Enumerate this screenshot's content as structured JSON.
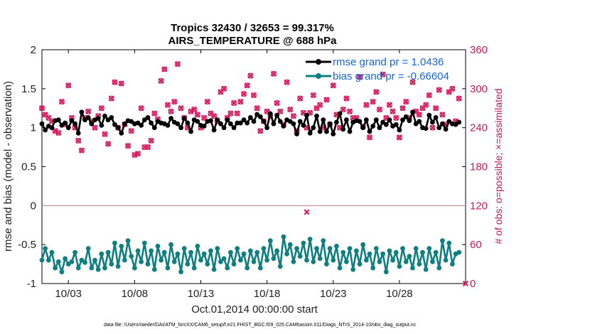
{
  "chart_data": {
    "type": "line",
    "title": "Tropics 32430 / 32653 = 99.317%",
    "subtitle": "AIRS_TEMPERATURE @ 688 hPa",
    "xlabel": "Oct.01,2014 00:00:00 start",
    "ylabel": "rmse and bias (model - observation)",
    "y2label": "# of obs: o=possible; ×=assimilated",
    "xlim": [
      1,
      33
    ],
    "ylim": [
      -1,
      2
    ],
    "y2lim": [
      0,
      360
    ],
    "xticks": [
      3,
      8,
      13,
      18,
      23,
      28
    ],
    "xtick_labels": [
      "10/03",
      "10/08",
      "10/13",
      "10/18",
      "10/23",
      "10/28"
    ],
    "yticks": [
      -1,
      -0.5,
      0,
      0.5,
      1,
      1.5,
      2
    ],
    "ytick_labels": [
      "-1",
      "-0.5",
      "0",
      "0.5",
      "1",
      "1.5",
      "2"
    ],
    "y2ticks": [
      0,
      60,
      120,
      180,
      240,
      300,
      360
    ],
    "y2tick_labels": [
      "0",
      "60",
      "120",
      "180",
      "240",
      "300",
      "360"
    ],
    "zero_line": 0,
    "legend_position": "top-right",
    "footer": "data file: /Users/raeder/DAI/ATM_forcXX/CAM6_setup/f.e21.FHIST_BGC.f09_025.CAM6assim.011/Diags_NTrS_2014-10/obs_diag_output.nc",
    "series": [
      {
        "name": "rmse grand pr = 1.0436",
        "color": "#000000",
        "x": [
          1.0,
          1.25,
          1.5,
          1.75,
          2.0,
          2.25,
          2.5,
          2.75,
          3.0,
          3.25,
          3.5,
          3.75,
          4.0,
          4.25,
          4.5,
          4.75,
          5.0,
          5.25,
          5.5,
          5.75,
          6.0,
          6.25,
          6.5,
          6.75,
          7.0,
          7.25,
          7.5,
          7.75,
          8.0,
          8.25,
          8.5,
          8.75,
          9.0,
          9.25,
          9.5,
          9.75,
          10.0,
          10.25,
          10.5,
          10.75,
          11.0,
          11.25,
          11.5,
          11.75,
          12.0,
          12.25,
          12.5,
          12.75,
          13.0,
          13.25,
          13.5,
          13.75,
          14.0,
          14.25,
          14.5,
          14.75,
          15.0,
          15.25,
          15.5,
          15.75,
          16.0,
          16.25,
          16.5,
          16.75,
          17.0,
          17.25,
          17.5,
          17.75,
          18.0,
          18.25,
          18.5,
          18.75,
          19.0,
          19.25,
          19.5,
          19.75,
          20.0,
          20.25,
          20.5,
          20.75,
          21.0,
          21.25,
          21.5,
          21.75,
          22.0,
          22.25,
          22.5,
          22.75,
          23.0,
          23.25,
          23.5,
          23.75,
          24.0,
          24.25,
          24.5,
          24.75,
          25.0,
          25.25,
          25.5,
          25.75,
          26.0,
          26.25,
          26.5,
          26.75,
          27.0,
          27.25,
          27.5,
          27.75,
          28.0,
          28.25,
          28.5,
          28.75,
          29.0,
          29.25,
          29.5,
          29.75,
          30.0,
          30.25,
          30.5,
          30.75,
          31.0,
          31.25,
          31.5,
          31.75,
          32.0,
          32.25,
          32.5
        ],
        "values": [
          1.05,
          0.97,
          1.02,
          1.0,
          1.09,
          1.1,
          1.03,
          1.06,
          1.0,
          1.09,
          1.05,
          0.93,
          1.2,
          1.1,
          1.13,
          1.05,
          1.1,
          1.12,
          1.03,
          1.15,
          1.1,
          1.13,
          1.04,
          1.0,
          0.93,
          1.05,
          1.09,
          1.08,
          1.05,
          1.06,
          1.03,
          1.1,
          1.13,
          1.06,
          1.0,
          1.08,
          1.06,
          1.05,
          1.03,
          1.12,
          1.07,
          1.05,
          1.0,
          1.12,
          1.06,
          0.95,
          1.1,
          1.08,
          1.03,
          1.02,
          1.08,
          1.09,
          0.97,
          1.1,
          1.05,
          1.0,
          1.1,
          1.05,
          1.0,
          1.06,
          1.06,
          1.1,
          1.06,
          1.13,
          1.08,
          1.17,
          1.14,
          1.08,
          1.0,
          1.18,
          1.05,
          1.16,
          1.08,
          1.02,
          1.1,
          1.08,
          1.05,
          0.92,
          1.08,
          1.03,
          1.16,
          0.93,
          1.0,
          1.15,
          0.95,
          1.1,
          0.95,
          1.05,
          0.92,
          1.07,
          1.18,
          0.98,
          1.1,
          0.95,
          1.07,
          1.09,
          1.08,
          1.0,
          1.1,
          0.95,
          1.02,
          1.1,
          1.0,
          1.07,
          1.04,
          1.1,
          1.02,
          1.04,
          0.97,
          1.1,
          1.14,
          1.09,
          1.2,
          1.05,
          1.08,
          1.0,
          0.99,
          1.16,
          1.07,
          1.13,
          1.0,
          1.05,
          0.98,
          1.08,
          1.05,
          1.04,
          1.07
        ]
      },
      {
        "name": "bias grand pr = -0.66604",
        "color": "#0f7f7f",
        "x": [
          1.0,
          1.25,
          1.5,
          1.75,
          2.0,
          2.25,
          2.5,
          2.75,
          3.0,
          3.25,
          3.5,
          3.75,
          4.0,
          4.25,
          4.5,
          4.75,
          5.0,
          5.25,
          5.5,
          5.75,
          6.0,
          6.25,
          6.5,
          6.75,
          7.0,
          7.25,
          7.5,
          7.75,
          8.0,
          8.25,
          8.5,
          8.75,
          9.0,
          9.25,
          9.5,
          9.75,
          10.0,
          10.25,
          10.5,
          10.75,
          11.0,
          11.25,
          11.5,
          11.75,
          12.0,
          12.25,
          12.5,
          12.75,
          13.0,
          13.25,
          13.5,
          13.75,
          14.0,
          14.25,
          14.5,
          14.75,
          15.0,
          15.25,
          15.5,
          15.75,
          16.0,
          16.25,
          16.5,
          16.75,
          17.0,
          17.25,
          17.5,
          17.75,
          18.0,
          18.25,
          18.5,
          18.75,
          19.0,
          19.25,
          19.5,
          19.75,
          20.0,
          20.25,
          20.5,
          20.75,
          21.0,
          21.25,
          21.5,
          21.75,
          22.0,
          22.25,
          22.5,
          22.75,
          23.0,
          23.25,
          23.5,
          23.75,
          24.0,
          24.25,
          24.5,
          24.75,
          25.0,
          25.25,
          25.5,
          25.75,
          26.0,
          26.25,
          26.5,
          26.75,
          27.0,
          27.25,
          27.5,
          27.75,
          28.0,
          28.25,
          28.5,
          28.75,
          29.0,
          29.25,
          29.5,
          29.75,
          30.0,
          30.25,
          30.5,
          30.75,
          31.0,
          31.25,
          31.5,
          31.75,
          32.0,
          32.25,
          32.5
        ],
        "values": [
          -0.7,
          -0.55,
          -0.7,
          -0.6,
          -0.8,
          -0.72,
          -0.85,
          -0.68,
          -0.75,
          -0.72,
          -0.6,
          -0.8,
          -0.7,
          -0.73,
          -0.55,
          -0.8,
          -0.7,
          -0.82,
          -0.62,
          -0.8,
          -0.6,
          -0.75,
          -0.48,
          -0.78,
          -0.52,
          -0.7,
          -0.45,
          -0.65,
          -0.8,
          -0.58,
          -0.72,
          -0.48,
          -0.75,
          -0.58,
          -0.82,
          -0.52,
          -0.7,
          -0.6,
          -0.8,
          -0.5,
          -0.72,
          -0.62,
          -0.85,
          -0.55,
          -0.75,
          -0.6,
          -0.8,
          -0.52,
          -0.7,
          -0.62,
          -0.75,
          -0.58,
          -0.82,
          -0.55,
          -0.72,
          -0.68,
          -0.8,
          -0.6,
          -0.75,
          -0.55,
          -0.7,
          -0.62,
          -0.8,
          -0.58,
          -0.72,
          -0.6,
          -0.8,
          -0.55,
          -0.7,
          -0.45,
          -0.68,
          -0.58,
          -0.78,
          -0.4,
          -0.62,
          -0.5,
          -0.72,
          -0.55,
          -0.65,
          -0.48,
          -0.7,
          -0.43,
          -0.72,
          -0.55,
          -0.68,
          -0.45,
          -0.75,
          -0.55,
          -0.7,
          -0.52,
          -0.8,
          -0.6,
          -0.72,
          -0.55,
          -0.82,
          -0.58,
          -0.75,
          -0.5,
          -0.7,
          -0.62,
          -0.8,
          -0.55,
          -0.72,
          -0.62,
          -0.85,
          -0.58,
          -0.7,
          -0.6,
          -0.78,
          -0.55,
          -0.72,
          -0.65,
          -0.8,
          -0.55,
          -0.75,
          -0.6,
          -0.82,
          -0.55,
          -0.72,
          -0.6,
          -0.8,
          -0.45,
          -0.7,
          -0.48,
          -0.75,
          -0.62,
          -0.6
        ]
      },
      {
        "name": "obs possible",
        "axis": "right",
        "marker": "o",
        "color": "#d81b60",
        "x": [
          1.0,
          1.25,
          1.5,
          1.75,
          2.0,
          2.25,
          2.5,
          2.75,
          3.0,
          3.25,
          3.5,
          3.75,
          4.0,
          4.25,
          4.5,
          4.75,
          5.0,
          5.25,
          5.5,
          5.75,
          6.0,
          6.25,
          6.5,
          6.75,
          7.0,
          7.25,
          7.5,
          7.75,
          8.0,
          8.25,
          8.5,
          8.75,
          9.0,
          9.25,
          9.5,
          9.75,
          10.0,
          10.25,
          10.5,
          10.75,
          11.0,
          11.25,
          11.5,
          11.75,
          12.0,
          12.25,
          12.5,
          12.75,
          13.0,
          13.25,
          13.5,
          13.75,
          14.0,
          14.25,
          14.5,
          14.75,
          15.0,
          15.25,
          15.5,
          15.75,
          16.0,
          16.25,
          16.5,
          16.75,
          17.0,
          17.25,
          17.5,
          17.75,
          18.0,
          18.25,
          18.5,
          18.75,
          19.0,
          19.25,
          19.5,
          19.75,
          20.0,
          20.25,
          20.5,
          20.75,
          21.0,
          21.25,
          21.5,
          21.75,
          22.0,
          22.25,
          22.5,
          22.75,
          23.0,
          23.25,
          23.5,
          23.75,
          24.0,
          24.25,
          24.5,
          24.75,
          25.0,
          25.25,
          25.5,
          25.75,
          26.0,
          26.25,
          26.5,
          26.75,
          27.0,
          27.25,
          27.5,
          27.75,
          28.0,
          28.25,
          28.5,
          28.75,
          29.0,
          29.25,
          29.5,
          29.75,
          30.0,
          30.25,
          30.5,
          30.75,
          31.0,
          31.25,
          31.5,
          31.75,
          32.0,
          32.25,
          32.5
        ],
        "values": [
          270,
          260,
          255,
          250,
          235,
          232,
          280,
          245,
          305,
          255,
          240,
          220,
          205,
          255,
          265,
          250,
          240,
          258,
          270,
          230,
          215,
          285,
          310,
          240,
          308,
          245,
          212,
          235,
          198,
          200,
          270,
          210,
          210,
          220,
          262,
          253,
          312,
          330,
          275,
          265,
          280,
          338,
          270,
          255,
          240,
          265,
          268,
          260,
          240,
          255,
          280,
          262,
          258,
          250,
          295,
          300,
          255,
          262,
          278,
          262,
          280,
          292,
          305,
          320,
          290,
          270,
          235,
          250,
          265,
          258,
          323,
          278,
          265,
          245,
          310,
          268,
          258,
          235,
          285,
          263,
          240,
          263,
          290,
          270,
          275,
          240,
          283,
          245,
          305,
          260,
          240,
          268,
          285,
          265,
          255,
          255,
          318,
          242,
          275,
          225,
          280,
          295,
          268,
          322,
          255,
          275,
          265,
          255,
          225,
          270,
          280,
          255,
          310,
          265,
          260,
          270,
          275,
          290,
          240,
          270,
          298,
          260,
          245,
          295,
          300,
          250,
          285
        ]
      },
      {
        "name": "obs assimilated",
        "axis": "right",
        "marker": "x",
        "color": "#d81b60",
        "x": [
          1.0,
          1.25,
          1.5,
          1.75,
          2.0,
          2.25,
          2.5,
          2.75,
          3.0,
          3.25,
          3.5,
          3.75,
          4.0,
          4.25,
          4.5,
          4.75,
          5.0,
          5.25,
          5.5,
          5.75,
          6.0,
          6.25,
          6.5,
          6.75,
          7.0,
          7.25,
          7.5,
          7.75,
          8.0,
          8.25,
          8.5,
          8.75,
          9.0,
          9.25,
          9.5,
          9.75,
          10.0,
          10.25,
          10.5,
          10.75,
          11.0,
          11.25,
          11.5,
          11.75,
          12.0,
          12.25,
          12.5,
          12.75,
          13.0,
          13.25,
          13.5,
          13.75,
          14.0,
          14.25,
          14.5,
          14.75,
          15.0,
          15.25,
          15.5,
          15.75,
          16.0,
          16.25,
          16.5,
          16.75,
          17.0,
          17.25,
          17.5,
          17.75,
          18.0,
          18.25,
          18.5,
          18.75,
          19.0,
          19.25,
          19.5,
          19.75,
          20.0,
          20.25,
          20.5,
          20.75,
          21.0,
          21.25,
          21.5,
          21.75,
          22.0,
          22.25,
          22.5,
          22.75,
          23.0,
          23.25,
          23.5,
          23.75,
          24.0,
          24.25,
          24.5,
          24.75,
          25.0,
          25.25,
          25.5,
          25.75,
          26.0,
          26.25,
          26.5,
          26.75,
          27.0,
          27.25,
          27.5,
          27.75,
          28.0,
          28.25,
          28.5,
          28.75,
          29.0,
          29.25,
          29.5,
          29.75,
          30.0,
          30.25,
          30.5,
          30.75,
          31.0,
          31.25,
          31.5,
          31.75,
          32.0,
          32.25,
          32.5,
          33.0
        ],
        "values": [
          270,
          260,
          255,
          250,
          235,
          232,
          280,
          245,
          305,
          255,
          240,
          220,
          205,
          255,
          265,
          250,
          240,
          258,
          270,
          230,
          215,
          285,
          310,
          240,
          308,
          245,
          212,
          235,
          198,
          200,
          270,
          210,
          210,
          220,
          262,
          253,
          312,
          330,
          275,
          265,
          280,
          338,
          270,
          255,
          240,
          265,
          268,
          260,
          240,
          255,
          280,
          262,
          258,
          250,
          295,
          300,
          255,
          262,
          278,
          262,
          280,
          292,
          305,
          320,
          290,
          270,
          235,
          250,
          265,
          258,
          323,
          278,
          265,
          245,
          310,
          268,
          258,
          235,
          285,
          263,
          240,
          263,
          290,
          270,
          275,
          240,
          283,
          245,
          305,
          260,
          240,
          268,
          285,
          265,
          255,
          255,
          318,
          242,
          275,
          225,
          280,
          295,
          268,
          322,
          255,
          275,
          265,
          255,
          225,
          270,
          280,
          255,
          310,
          265,
          260,
          270,
          275,
          290,
          240,
          270,
          298,
          260,
          245,
          295,
          300,
          250,
          285,
          0
        ]
      },
      {
        "name": "obs outlier",
        "axis": "right",
        "marker": "x",
        "color": "#d81b60",
        "x": [
          21.0
        ],
        "values": [
          110
        ]
      }
    ]
  },
  "colors": {
    "obs": "#d81b60",
    "legend_text": "#1565e0",
    "zero_line": "#caa3a8"
  }
}
